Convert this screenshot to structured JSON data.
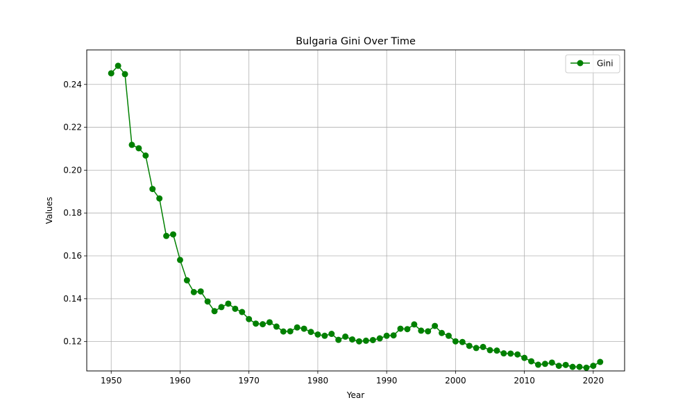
{
  "chart_data": {
    "type": "line",
    "title": "Bulgaria Gini Over Time",
    "xlabel": "Year",
    "ylabel": "Values",
    "xlim": [
      1946.45,
      2024.55
    ],
    "ylim": [
      0.1063,
      0.2561
    ],
    "xticks": [
      1950,
      1960,
      1970,
      1980,
      1990,
      2000,
      2010,
      2020
    ],
    "yticks": [
      0.12,
      0.14,
      0.16,
      0.18,
      0.2,
      0.22,
      0.24
    ],
    "ytick_labels": [
      "0.12",
      "0.14",
      "0.16",
      "0.18",
      "0.20",
      "0.22",
      "0.24"
    ],
    "grid": true,
    "legend_position": "upper right",
    "series": [
      {
        "name": "Gini",
        "color": "#008000",
        "marker": "circle",
        "x": [
          1950,
          1951,
          1952,
          1953,
          1954,
          1955,
          1956,
          1957,
          1958,
          1959,
          1960,
          1961,
          1962,
          1963,
          1964,
          1965,
          1966,
          1967,
          1968,
          1969,
          1970,
          1971,
          1972,
          1973,
          1974,
          1975,
          1976,
          1977,
          1978,
          1979,
          1980,
          1981,
          1982,
          1983,
          1984,
          1985,
          1986,
          1987,
          1988,
          1989,
          1990,
          1991,
          1992,
          1993,
          1994,
          1995,
          1996,
          1997,
          1998,
          1999,
          2000,
          2001,
          2002,
          2003,
          2004,
          2005,
          2006,
          2007,
          2008,
          2009,
          2010,
          2011,
          2012,
          2013,
          2014,
          2015,
          2016,
          2017,
          2018,
          2019,
          2020,
          2021
        ],
        "values": [
          0.2452,
          0.2487,
          0.2448,
          0.2118,
          0.2102,
          0.2068,
          0.1912,
          0.1868,
          0.1693,
          0.17,
          0.1581,
          0.1486,
          0.1431,
          0.1434,
          0.1387,
          0.1342,
          0.1361,
          0.1377,
          0.1353,
          0.1338,
          0.1305,
          0.1284,
          0.1281,
          0.129,
          0.127,
          0.1247,
          0.1248,
          0.1266,
          0.126,
          0.1245,
          0.1233,
          0.1227,
          0.1236,
          0.1208,
          0.1223,
          0.121,
          0.1201,
          0.1204,
          0.1207,
          0.1215,
          0.1227,
          0.1229,
          0.126,
          0.1258,
          0.128,
          0.1251,
          0.1248,
          0.1273,
          0.124,
          0.1227,
          0.1201,
          0.1198,
          0.118,
          0.117,
          0.1175,
          0.116,
          0.1158,
          0.1145,
          0.1144,
          0.114,
          0.1124,
          0.1108,
          0.1092,
          0.1096,
          0.1102,
          0.1087,
          0.1091,
          0.1082,
          0.1082,
          0.1078,
          0.1087,
          0.1105
        ]
      }
    ]
  }
}
